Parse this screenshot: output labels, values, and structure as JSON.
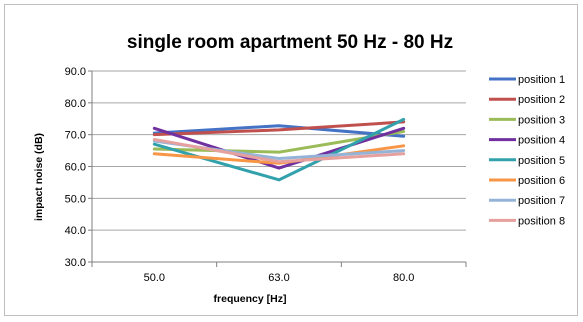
{
  "chart_data": {
    "type": "line",
    "title": "single room apartment 50 Hz - 80 Hz",
    "xlabel": "frequency [Hz]",
    "ylabel": "impact noise (dB)",
    "categories": [
      "50.0",
      "63.0",
      "80.0"
    ],
    "y_ticks": [
      "30.0",
      "40.0",
      "50.0",
      "60.0",
      "70.0",
      "80.0",
      "90.0"
    ],
    "ylim": [
      30,
      90
    ],
    "grid": "horizontal",
    "legend_position": "right",
    "series": [
      {
        "name": "position 1",
        "color": "#4472c4",
        "values": [
          70.5,
          72.8,
          69.5
        ]
      },
      {
        "name": "position 2",
        "color": "#c0504d",
        "values": [
          70.0,
          71.5,
          74.0
        ]
      },
      {
        "name": "position 3",
        "color": "#9bbb59",
        "values": [
          65.5,
          64.5,
          71.0
        ]
      },
      {
        "name": "position 4",
        "color": "#7030a0",
        "values": [
          72.0,
          59.5,
          72.0
        ]
      },
      {
        "name": "position 5",
        "color": "#31a1ac",
        "values": [
          67.0,
          55.8,
          74.8
        ]
      },
      {
        "name": "position 6",
        "color": "#f79646",
        "values": [
          64.0,
          61.0,
          66.5
        ]
      },
      {
        "name": "position 7",
        "color": "#95b3d7",
        "values": [
          68.0,
          62.5,
          65.0
        ]
      },
      {
        "name": "position 8",
        "color": "#e6a09e",
        "values": [
          68.5,
          61.5,
          64.0
        ]
      }
    ]
  }
}
